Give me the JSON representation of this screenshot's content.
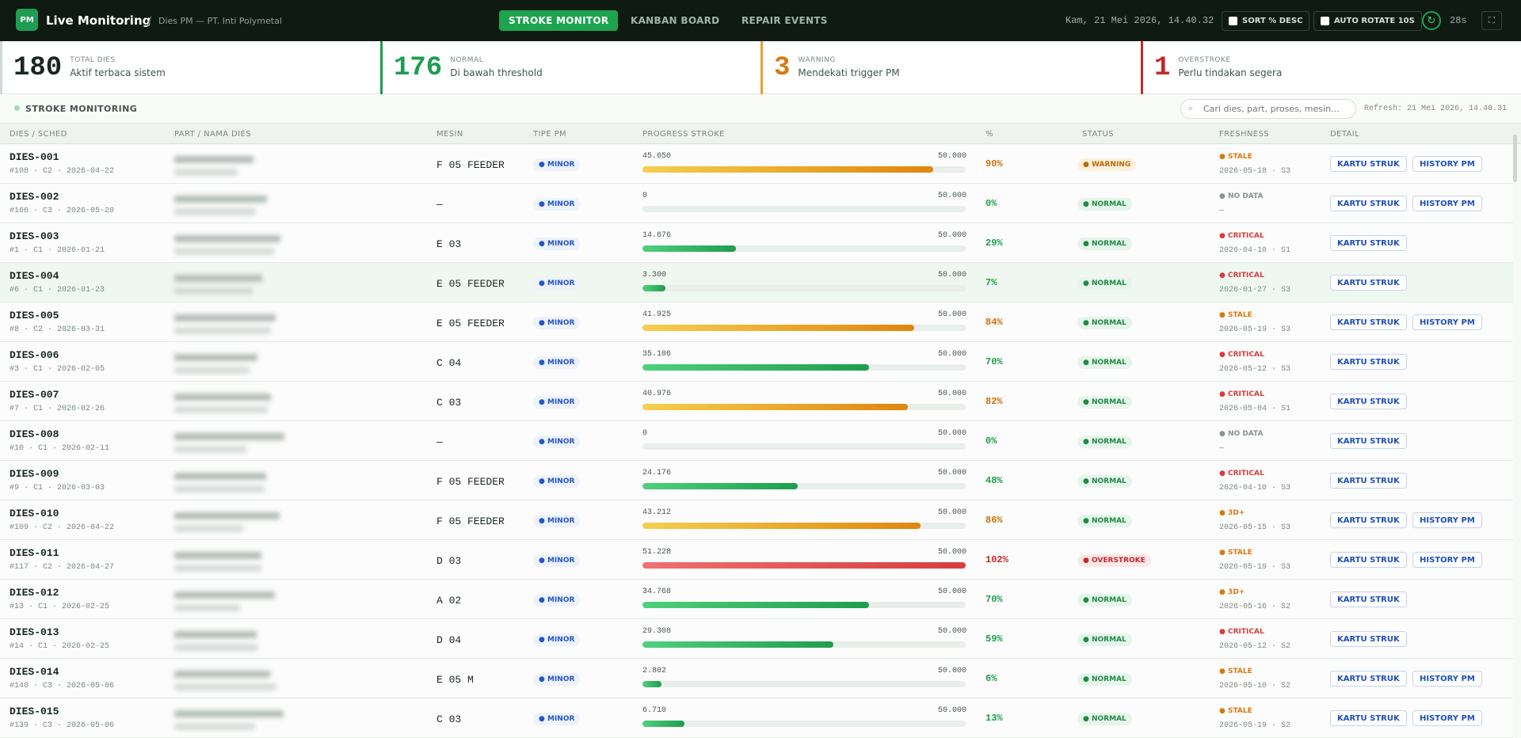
{
  "header": {
    "logo": "PM",
    "title": "Live Monitoring",
    "separator": "/",
    "subtitle": "Dies PM — PT. Inti Polymetal",
    "nav": [
      "STROKE MONITOR",
      "KANBAN BOARD",
      "REPAIR EVENTS"
    ],
    "datetime": "Kam, 21 Mei 2026, 14.40.32",
    "sort_toggle": "SORT % DESC",
    "rotate_toggle": "AUTO ROTATE 10S",
    "countdown": "28s"
  },
  "stats": [
    {
      "value": "180",
      "label": "TOTAL DIES",
      "desc": "Aktif terbaca sistem"
    },
    {
      "value": "176",
      "label": "NORMAL",
      "desc": "Di bawah threshold"
    },
    {
      "value": "3",
      "label": "WARNING",
      "desc": "Mendekati trigger PM"
    },
    {
      "value": "1",
      "label": "OVERSTROKE",
      "desc": "Perlu tindakan segera"
    }
  ],
  "toolbar": {
    "title": "STROKE MONITORING",
    "search_placeholder": "Cari dies, part, proses, mesin...",
    "refresh": "Refresh: 21 Mei 2026, 14.40.31"
  },
  "table": {
    "columns": [
      "DIES / SCHED",
      "PART / NAMA DIES",
      "MESIN",
      "TIPE PM",
      "PROGRESS STROKE",
      "%",
      "STATUS",
      "FRESHNESS",
      "DETAIL"
    ],
    "rows": [
      {
        "id": "DIES-001",
        "sched": "#108 · C2 · 2026-04-22",
        "machine": "F 05 FEEDER",
        "pm": "MINOR",
        "stroke": "45.050",
        "limit": "50.000",
        "pct": "90%",
        "status": "WARNING",
        "fresh": "STALE",
        "fresh_date": "2026-05-18 · S3",
        "actions": [
          "KARTU STRUK",
          "HISTORY PM"
        ]
      },
      {
        "id": "DIES-002",
        "sched": "#166 · C3 · 2026-05-20",
        "machine": "—",
        "pm": "MINOR",
        "stroke": "0",
        "limit": "50.000",
        "pct": "0%",
        "status": "NORMAL",
        "fresh": "NO DATA",
        "fresh_date": "—",
        "actions": [
          "KARTU STRUK",
          "HISTORY PM"
        ]
      },
      {
        "id": "DIES-003",
        "sched": "#1 · C1 · 2026-01-21",
        "machine": "E 03",
        "pm": "MINOR",
        "stroke": "14.676",
        "limit": "50.000",
        "pct": "29%",
        "status": "NORMAL",
        "fresh": "CRITICAL",
        "fresh_date": "2026-04-10 · S1",
        "actions": [
          "KARTU STRUK"
        ]
      },
      {
        "id": "DIES-004",
        "sched": "#6 · C1 · 2026-01-23",
        "machine": "E 05 FEEDER",
        "pm": "MINOR",
        "stroke": "3.300",
        "limit": "50.000",
        "pct": "7%",
        "status": "NORMAL",
        "fresh": "CRITICAL",
        "fresh_date": "2026-01-27 · S3",
        "actions": [
          "KARTU STRUK"
        ]
      },
      {
        "id": "DIES-005",
        "sched": "#8 · C2 · 2026-03-31",
        "machine": "E 05 FEEDER",
        "pm": "MINOR",
        "stroke": "41.925",
        "limit": "50.000",
        "pct": "84%",
        "status": "NORMAL",
        "fresh": "STALE",
        "fresh_date": "2026-05-19 · S3",
        "actions": [
          "KARTU STRUK",
          "HISTORY PM"
        ]
      },
      {
        "id": "DIES-006",
        "sched": "#3 · C1 · 2026-02-05",
        "machine": "C 04",
        "pm": "MINOR",
        "stroke": "35.106",
        "limit": "50.000",
        "pct": "70%",
        "status": "NORMAL",
        "fresh": "CRITICAL",
        "fresh_date": "2026-05-12 · S3",
        "actions": [
          "KARTU STRUK"
        ]
      },
      {
        "id": "DIES-007",
        "sched": "#7 · C1 · 2026-02-26",
        "machine": "C 03",
        "pm": "MINOR",
        "stroke": "40.976",
        "limit": "50.000",
        "pct": "82%",
        "status": "NORMAL",
        "fresh": "CRITICAL",
        "fresh_date": "2026-05-04 · S1",
        "actions": [
          "KARTU STRUK"
        ]
      },
      {
        "id": "DIES-008",
        "sched": "#10 · C1 · 2026-02-11",
        "machine": "—",
        "pm": "MINOR",
        "stroke": "0",
        "limit": "50.000",
        "pct": "0%",
        "status": "NORMAL",
        "fresh": "NO DATA",
        "fresh_date": "—",
        "actions": [
          "KARTU STRUK"
        ]
      },
      {
        "id": "DIES-009",
        "sched": "#9 · C1 · 2026-03-03",
        "machine": "F 05 FEEDER",
        "pm": "MINOR",
        "stroke": "24.176",
        "limit": "50.000",
        "pct": "48%",
        "status": "NORMAL",
        "fresh": "CRITICAL",
        "fresh_date": "2026-04-10 · S3",
        "actions": [
          "KARTU STRUK"
        ]
      },
      {
        "id": "DIES-010",
        "sched": "#109 · C2 · 2026-04-22",
        "machine": "F 05 FEEDER",
        "pm": "MINOR",
        "stroke": "43.212",
        "limit": "50.000",
        "pct": "86%",
        "status": "NORMAL",
        "fresh": "3D+",
        "fresh_date": "2026-05-15 · S3",
        "actions": [
          "KARTU STRUK",
          "HISTORY PM"
        ]
      },
      {
        "id": "DIES-011",
        "sched": "#117 · C2 · 2026-04-27",
        "machine": "D 03",
        "pm": "MINOR",
        "stroke": "51.228",
        "limit": "50.000",
        "pct": "102%",
        "status": "OVERSTROKE",
        "fresh": "STALE",
        "fresh_date": "2026-05-19 · S3",
        "actions": [
          "KARTU STRUK",
          "HISTORY PM"
        ]
      },
      {
        "id": "DIES-012",
        "sched": "#13 · C1 · 2026-02-25",
        "machine": "A 02",
        "pm": "MINOR",
        "stroke": "34.768",
        "limit": "50.000",
        "pct": "70%",
        "status": "NORMAL",
        "fresh": "3D+",
        "fresh_date": "2026-05-16 · S2",
        "actions": [
          "KARTU STRUK"
        ]
      },
      {
        "id": "DIES-013",
        "sched": "#14 · C1 · 2026-02-25",
        "machine": "D 04",
        "pm": "MINOR",
        "stroke": "29.308",
        "limit": "50.000",
        "pct": "59%",
        "status": "NORMAL",
        "fresh": "CRITICAL",
        "fresh_date": "2026-05-12 · S2",
        "actions": [
          "KARTU STRUK"
        ]
      },
      {
        "id": "DIES-014",
        "sched": "#140 · C3 · 2026-05-06",
        "machine": "E 05 M",
        "pm": "MINOR",
        "stroke": "2.802",
        "limit": "50.000",
        "pct": "6%",
        "status": "NORMAL",
        "fresh": "STALE",
        "fresh_date": "2026-05-10 · S2",
        "actions": [
          "KARTU STRUK",
          "HISTORY PM"
        ]
      },
      {
        "id": "DIES-015",
        "sched": "#139 · C3 · 2026-05-06",
        "machine": "C 03",
        "pm": "MINOR",
        "stroke": "6.710",
        "limit": "50.000",
        "pct": "13%",
        "status": "NORMAL",
        "fresh": "STALE",
        "fresh_date": "2026-05-19 · S2",
        "actions": [
          "KARTU STRUK",
          "HISTORY PM"
        ]
      }
    ]
  }
}
